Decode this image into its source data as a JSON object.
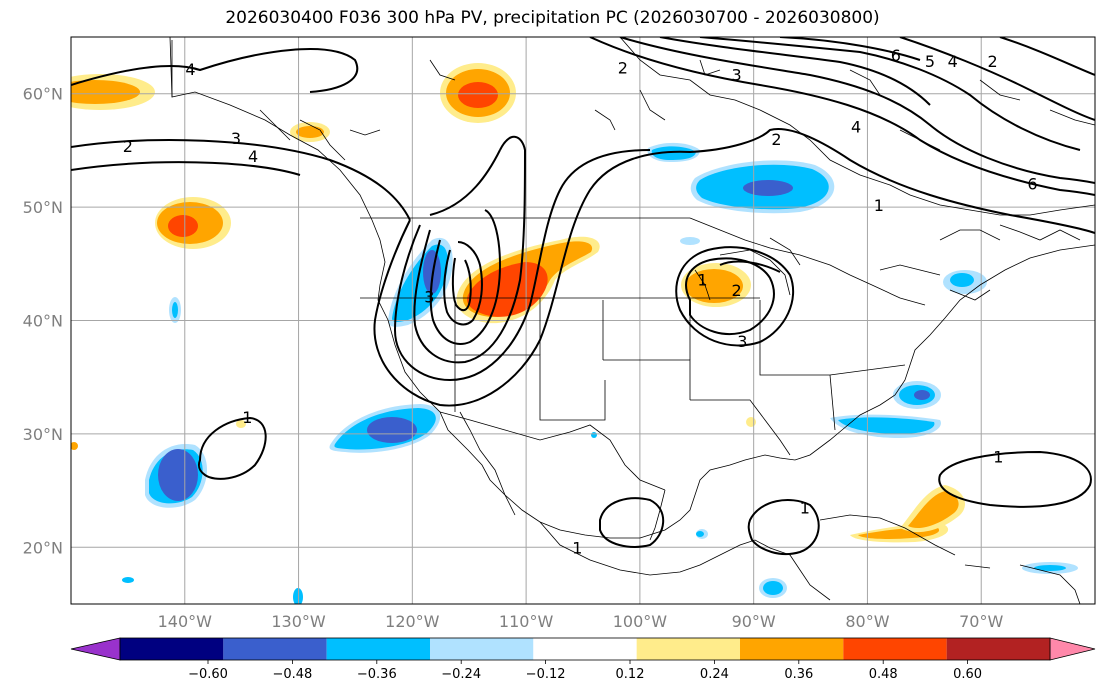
{
  "title": "2026030400 F036 300 hPa PV, precipitation PC (2026030700 - 2026030800)",
  "map": {
    "projection": "PlateCarree",
    "lon_range": [
      -150,
      -60
    ],
    "lat_range": [
      15,
      65
    ],
    "gridlines": true,
    "lon_labels": [
      {
        "lon": -140,
        "text": "140°W"
      },
      {
        "lon": -130,
        "text": "130°W"
      },
      {
        "lon": -120,
        "text": "120°W"
      },
      {
        "lon": -110,
        "text": "110°W"
      },
      {
        "lon": -100,
        "text": "100°W"
      },
      {
        "lon": -90,
        "text": "90°W"
      },
      {
        "lon": -80,
        "text": "80°W"
      },
      {
        "lon": -70,
        "text": "70°W"
      }
    ],
    "lat_labels": [
      {
        "lat": 60,
        "text": "60°N"
      },
      {
        "lat": 50,
        "text": "50°N"
      },
      {
        "lat": 40,
        "text": "40°N"
      },
      {
        "lat": 30,
        "text": "30°N"
      },
      {
        "lat": 20,
        "text": "20°N"
      }
    ]
  },
  "pv_contour_labels": [
    {
      "text": "4",
      "lon": -139.5,
      "lat": 62.2
    },
    {
      "text": "2",
      "lon": -145,
      "lat": 55.4
    },
    {
      "text": "3",
      "lon": -135.5,
      "lat": 56.1
    },
    {
      "text": "4",
      "lon": -134,
      "lat": 54.5
    },
    {
      "text": "2",
      "lon": -101.5,
      "lat": 62.3
    },
    {
      "text": "3",
      "lon": -91.5,
      "lat": 61.7
    },
    {
      "text": "6",
      "lon": -77.5,
      "lat": 63.4
    },
    {
      "text": "5",
      "lon": -74.5,
      "lat": 62.9
    },
    {
      "text": "4",
      "lon": -72.5,
      "lat": 62.9
    },
    {
      "text": "2",
      "lon": -69,
      "lat": 62.9
    },
    {
      "text": "2",
      "lon": -88,
      "lat": 56.0
    },
    {
      "text": "4",
      "lon": -81,
      "lat": 57.1
    },
    {
      "text": "6",
      "lon": -65.5,
      "lat": 52.1
    },
    {
      "text": "1",
      "lon": -79,
      "lat": 50.2
    },
    {
      "text": "1",
      "lon": -94.5,
      "lat": 43.6
    },
    {
      "text": "2",
      "lon": -91.5,
      "lat": 42.7
    },
    {
      "text": "3",
      "lon": -91,
      "lat": 38.2
    },
    {
      "text": "3",
      "lon": -118.5,
      "lat": 42.1
    },
    {
      "text": "1",
      "lon": -134.5,
      "lat": 31.5
    },
    {
      "text": "1",
      "lon": -68.5,
      "lat": 28.0
    },
    {
      "text": "1",
      "lon": -85.5,
      "lat": 23.5
    },
    {
      "text": "1",
      "lon": -105.5,
      "lat": 20.0
    }
  ],
  "colorbar": {
    "levels": [
      -0.6,
      -0.48,
      -0.36,
      -0.24,
      -0.12,
      0.12,
      0.24,
      0.36,
      0.48,
      0.6
    ],
    "tick_labels": [
      "−0.60",
      "−0.48",
      "−0.36",
      "−0.24",
      "−0.12",
      "0.12",
      "0.24",
      "0.36",
      "0.48",
      "0.60"
    ],
    "under_color": "#9932cc",
    "over_color": "#ff88aa",
    "colors": [
      "#000080",
      "#3a5fcd",
      "#00bfff",
      "#b0e2ff",
      "#ffffff",
      "#ffec8b",
      "#ffa500",
      "#ff4500",
      "#b22222"
    ]
  },
  "colors": {
    "strong_neg": "#3a5fcd",
    "neg": "#00bfff",
    "weak_neg": "#b0e2ff",
    "weak_pos": "#ffec8b",
    "pos": "#ffa500",
    "strong_pos": "#ff4500",
    "grid": "#a6a6a6",
    "contour": "#000000"
  }
}
